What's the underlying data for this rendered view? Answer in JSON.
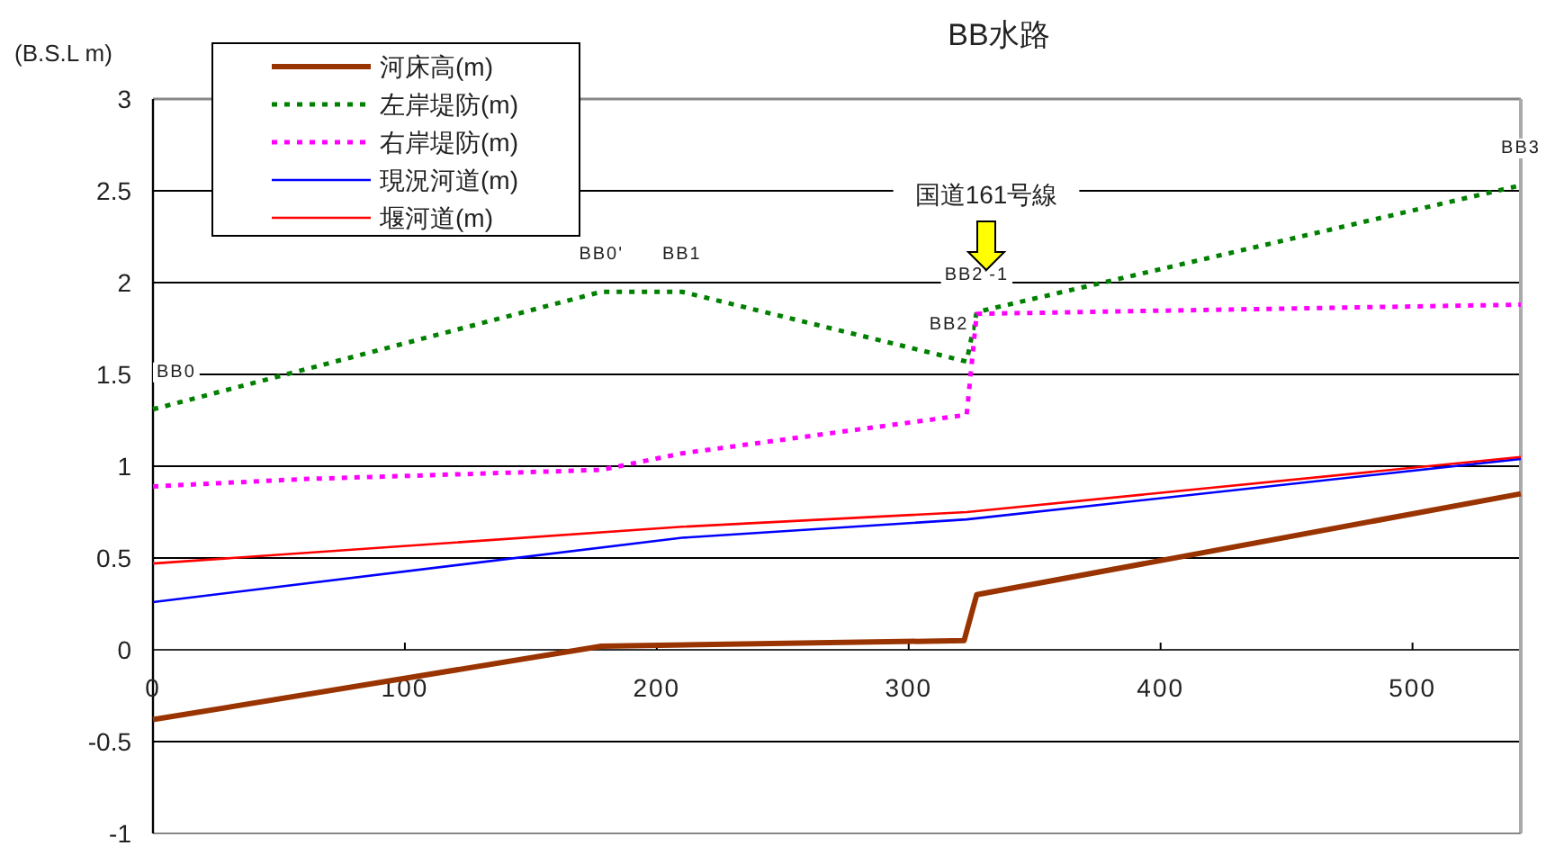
{
  "chart_data": {
    "type": "line",
    "title": "BB水路",
    "ylabel": "(B.S.L m)",
    "xlim": [
      0,
      543
    ],
    "xticks": [
      0,
      100,
      200,
      300,
      400,
      500
    ],
    "ylim": [
      -1,
      3
    ],
    "yticks": [
      -1,
      -0.5,
      0,
      0.5,
      1,
      1.5,
      2,
      2.5,
      3
    ],
    "grid": "y",
    "legend": "top left",
    "marker": "none",
    "series": [
      {
        "name": "河床高(m)",
        "color": "#993300",
        "line_style": "solid",
        "x": [
          0,
          178,
          322,
          327,
          543
        ],
        "values": [
          -0.38,
          0.02,
          0.05,
          0.3,
          0.85
        ]
      },
      {
        "name": "左岸堤防(m)",
        "color": "#008000",
        "line_style": "dotted",
        "x": [
          0,
          178,
          210,
          323,
          327,
          543
        ],
        "values": [
          1.31,
          1.95,
          1.95,
          1.57,
          1.84,
          2.53
        ]
      },
      {
        "name": "右岸堤防(m)",
        "color": "#ff00ff",
        "line_style": "dotted",
        "x": [
          0,
          60,
          178,
          210,
          323,
          327,
          543
        ],
        "values": [
          0.89,
          0.93,
          0.98,
          1.07,
          1.28,
          1.83,
          1.88
        ]
      },
      {
        "name": "現況河道(m)",
        "color": "#0000ff",
        "line_style": "solid",
        "x": [
          0,
          210,
          323,
          543
        ],
        "values": [
          0.26,
          0.61,
          0.71,
          1.04
        ]
      },
      {
        "name": "堰河道(m)",
        "color": "#ff0000",
        "line_style": "solid",
        "x": [
          0,
          210,
          323,
          543
        ],
        "values": [
          0.47,
          0.67,
          0.75,
          1.05
        ]
      }
    ],
    "annotations": [
      {
        "text": "BB0",
        "x": 0,
        "y": 1.31
      },
      {
        "text": "BB0'",
        "x": 178,
        "y": 1.95
      },
      {
        "text": "BB1",
        "x": 210,
        "y": 1.95
      },
      {
        "text": "BB2",
        "x": 316,
        "y": 1.57
      },
      {
        "text": "BB2'-1",
        "x": 327,
        "y": 1.84
      },
      {
        "text": "BB3",
        "x": 543,
        "y": 2.53
      },
      "国道161号線"
    ]
  }
}
